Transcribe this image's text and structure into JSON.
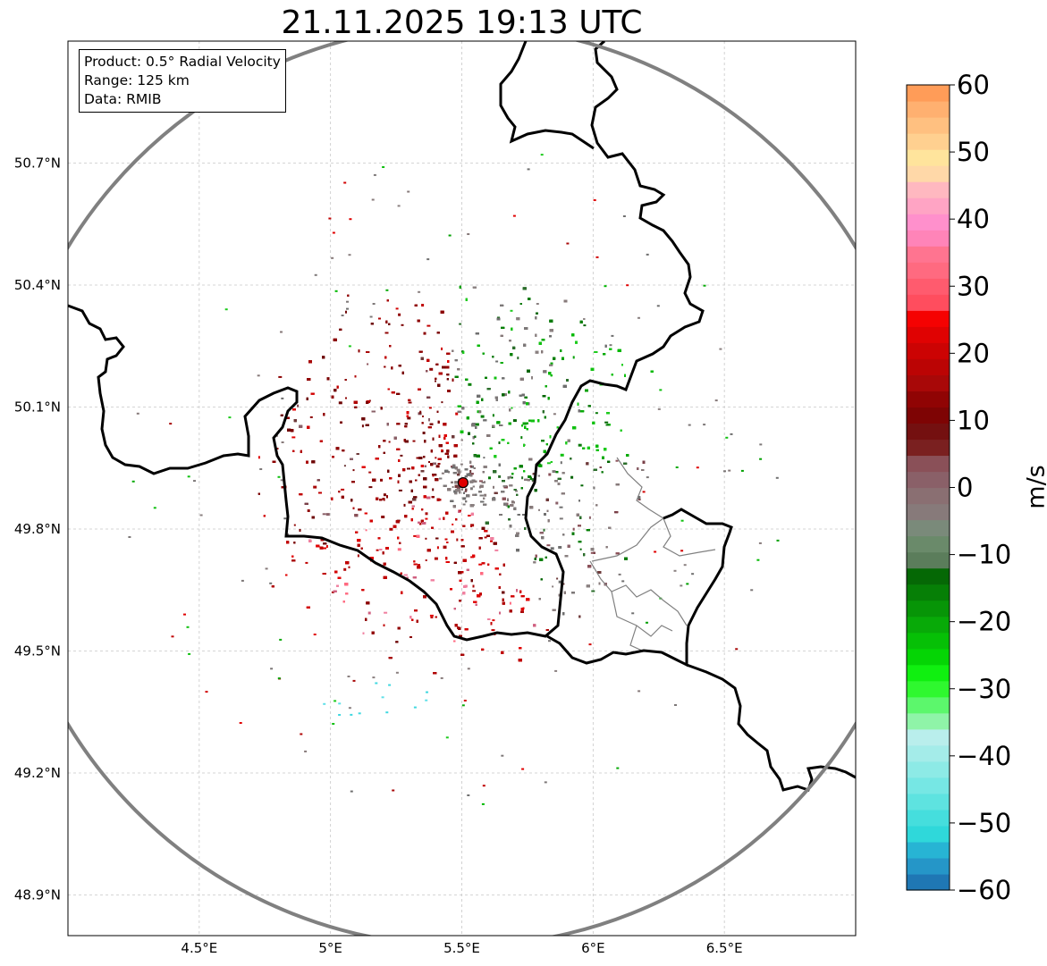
{
  "title": "21.11.2025 19:13 UTC",
  "info_box": {
    "product": "Product: 0.5° Radial Velocity",
    "range": "Range: 125 km",
    "source": "Data: RMIB"
  },
  "map": {
    "lon_range": [
      4.0,
      7.0
    ],
    "lat_range": [
      48.8,
      51.0
    ],
    "x_ticks": [
      {
        "value": 4.5,
        "label": "4.5°E"
      },
      {
        "value": 5.0,
        "label": "5°E"
      },
      {
        "value": 5.5,
        "label": "5.5°E"
      },
      {
        "value": 6.0,
        "label": "6°E"
      },
      {
        "value": 6.5,
        "label": "6.5°E"
      }
    ],
    "y_ticks": [
      {
        "value": 50.7,
        "label": "50.7°N"
      },
      {
        "value": 50.4,
        "label": "50.4°N"
      },
      {
        "value": 50.1,
        "label": "50.1°N"
      },
      {
        "value": 49.8,
        "label": "49.8°N"
      },
      {
        "value": 49.5,
        "label": "49.5°N"
      },
      {
        "value": 49.2,
        "label": "49.2°N"
      },
      {
        "value": 48.9,
        "label": "48.9°N"
      }
    ],
    "radar_site": {
      "lon": 5.505,
      "lat": 49.914
    },
    "range_ring_color": "#808080",
    "border_color": "#000000",
    "admin_color": "#808080"
  },
  "colorbar": {
    "label": "m/s",
    "min": -60,
    "max": 60,
    "ticks": [
      {
        "value": 60,
        "label": "60"
      },
      {
        "value": 50,
        "label": "50"
      },
      {
        "value": 40,
        "label": "40"
      },
      {
        "value": 30,
        "label": "30"
      },
      {
        "value": 20,
        "label": "20"
      },
      {
        "value": 10,
        "label": "10"
      },
      {
        "value": 0,
        "label": "0"
      },
      {
        "value": -10,
        "label": "−10"
      },
      {
        "value": -20,
        "label": "−20"
      },
      {
        "value": -30,
        "label": "−30"
      },
      {
        "value": -40,
        "label": "−40"
      },
      {
        "value": -50,
        "label": "−50"
      },
      {
        "value": -60,
        "label": "−60"
      }
    ],
    "colors_bottom_to_top": [
      "#1f77b4",
      "#2596c8",
      "#27b4d4",
      "#2fd8da",
      "#45dedd",
      "#5ee3e0",
      "#76e7e4",
      "#8deae6",
      "#a4ece9",
      "#b9eeec",
      "#8ff4a8",
      "#5cf76c",
      "#2ff82f",
      "#10f010",
      "#05d505",
      "#06c006",
      "#08aa08",
      "#079507",
      "#067f06",
      "#056805",
      "#5b7d5b",
      "#6a8a6a",
      "#7a8a7a",
      "#877a7a",
      "#8a6f72",
      "#8a6068",
      "#8a5058",
      "#7a2020",
      "#741010",
      "#7e0404",
      "#900404",
      "#a80808",
      "#bb0404",
      "#cc0303",
      "#e00202",
      "#f50202",
      "#ff4d5e",
      "#ff5b6e",
      "#ff6a80",
      "#ff7490",
      "#ff84b8",
      "#ff90cc",
      "#ffa4c4",
      "#ffb8c0",
      "#ffd8a8",
      "#ffe49c",
      "#ffd090",
      "#ffc080",
      "#ffb070",
      "#ff9c58"
    ]
  }
}
